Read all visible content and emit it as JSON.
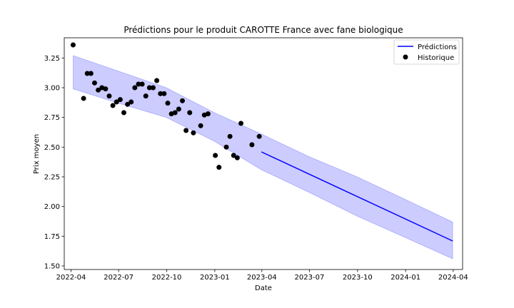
{
  "chart_data": {
    "type": "line",
    "title": "Prédictions pour le produit CAROTTE France avec fane biologique",
    "xlabel": "Date",
    "ylabel": "Prix moyen",
    "xlim": [
      "2022-03-19",
      "2024-04-19"
    ],
    "ylim": [
      1.47,
      3.42
    ],
    "x_ticks": [
      "2022-04",
      "2022-07",
      "2022-10",
      "2023-01",
      "2023-04",
      "2023-07",
      "2023-10",
      "2024-01",
      "2024-04"
    ],
    "y_ticks": [
      1.5,
      1.75,
      2.0,
      2.25,
      2.5,
      2.75,
      3.0,
      3.25
    ],
    "grid": false,
    "legend": {
      "position": "top-right",
      "entries": [
        "Prédictions",
        "Historique"
      ]
    },
    "series": [
      {
        "name": "Prédictions",
        "kind": "line",
        "color": "#0000ff",
        "x": [
          "2023-03-31",
          "2024-03-31"
        ],
        "y": [
          2.46,
          1.71
        ]
      },
      {
        "name": "Historique",
        "kind": "scatter",
        "color": "#000000",
        "points": [
          [
            "2022-04-05",
            3.36
          ],
          [
            "2022-04-25",
            2.91
          ],
          [
            "2022-05-02",
            3.12
          ],
          [
            "2022-05-09",
            3.12
          ],
          [
            "2022-05-16",
            3.04
          ],
          [
            "2022-05-23",
            2.98
          ],
          [
            "2022-05-30",
            3.0
          ],
          [
            "2022-06-06",
            2.99
          ],
          [
            "2022-06-13",
            2.93
          ],
          [
            "2022-06-20",
            2.85
          ],
          [
            "2022-06-27",
            2.88
          ],
          [
            "2022-07-04",
            2.9
          ],
          [
            "2022-07-11",
            2.79
          ],
          [
            "2022-07-18",
            2.86
          ],
          [
            "2022-07-25",
            2.88
          ],
          [
            "2022-08-01",
            3.0
          ],
          [
            "2022-08-08",
            3.03
          ],
          [
            "2022-08-15",
            3.03
          ],
          [
            "2022-08-22",
            2.93
          ],
          [
            "2022-08-29",
            3.0
          ],
          [
            "2022-09-05",
            3.0
          ],
          [
            "2022-09-12",
            3.06
          ],
          [
            "2022-09-19",
            2.95
          ],
          [
            "2022-09-26",
            2.95
          ],
          [
            "2022-10-03",
            2.87
          ],
          [
            "2022-10-10",
            2.78
          ],
          [
            "2022-10-17",
            2.79
          ],
          [
            "2022-10-24",
            2.82
          ],
          [
            "2022-10-31",
            2.89
          ],
          [
            "2022-11-07",
            2.64
          ],
          [
            "2022-11-14",
            2.79
          ],
          [
            "2022-11-21",
            2.62
          ],
          [
            "2022-12-05",
            2.68
          ],
          [
            "2022-12-12",
            2.77
          ],
          [
            "2022-12-19",
            2.78
          ],
          [
            "2023-01-02",
            2.43
          ],
          [
            "2023-01-09",
            2.33
          ],
          [
            "2023-01-23",
            2.5
          ],
          [
            "2023-01-30",
            2.59
          ],
          [
            "2023-02-06",
            2.43
          ],
          [
            "2023-02-13",
            2.41
          ],
          [
            "2023-02-20",
            2.7
          ],
          [
            "2023-03-13",
            2.52
          ],
          [
            "2023-03-27",
            2.59
          ]
        ]
      },
      {
        "name": "",
        "kind": "band",
        "color": "#0000ff",
        "x": [
          "2022-04-05",
          "2022-06-30",
          "2022-09-30",
          "2022-12-31",
          "2023-03-31",
          "2023-06-30",
          "2023-09-30",
          "2023-12-31",
          "2024-03-31"
        ],
        "y_lower": [
          2.99,
          2.87,
          2.75,
          2.55,
          2.31,
          2.12,
          1.92,
          1.74,
          1.56
        ],
        "y_upper": [
          3.27,
          3.14,
          3.0,
          2.79,
          2.61,
          2.42,
          2.25,
          2.06,
          1.87
        ]
      }
    ]
  }
}
